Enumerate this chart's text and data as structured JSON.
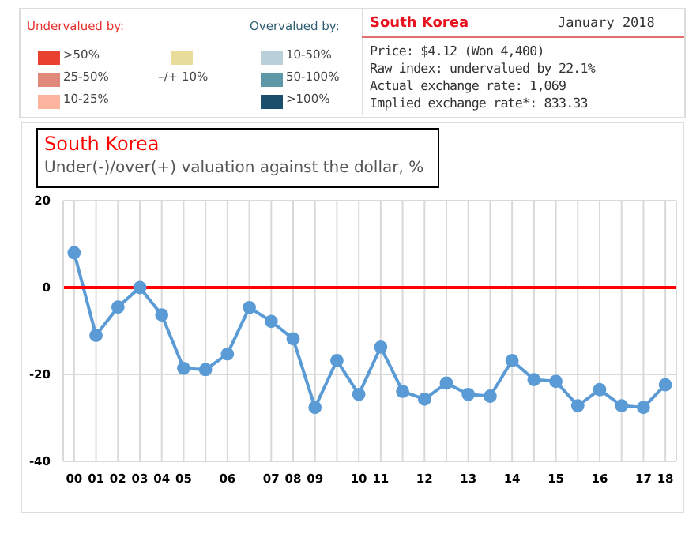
{
  "chart_data": {
    "type": "line",
    "title": "South Korea",
    "subtitle": "Under(-)/over(+) valuation against the dollar, %",
    "categories": [
      "00",
      "01",
      "02",
      "03",
      "04",
      "05",
      null,
      "06",
      null,
      "07",
      "08",
      "09",
      null,
      "10",
      "11",
      null,
      "12",
      null,
      "13",
      null,
      "14",
      null,
      "15",
      null,
      "16",
      null,
      "17",
      "18"
    ],
    "series": [
      {
        "color": "#5b9bd5",
        "values": [
          8,
          -11,
          -4.5,
          0,
          -6.3,
          -18.6,
          -18.9,
          -15.3,
          -4.6,
          -7.8,
          -11.8,
          -27.6,
          -16.8,
          -24.6,
          -13.7,
          -23.9,
          -25.7,
          -22,
          -24.6,
          -25,
          -16.8,
          -21.2,
          -21.6,
          -27.2,
          -23.5,
          -27.2,
          -27.6,
          -22.4
        ]
      }
    ],
    "ylim": [
      -40,
      20
    ],
    "yticks": [
      -40,
      -20,
      0,
      20
    ],
    "grid": true,
    "marker": "circle",
    "line_style": "solid",
    "ref_lines": [
      {
        "axis": "y",
        "value": 0,
        "color": "#ff0000"
      }
    ],
    "annotations": [
      "Undervalued by:",
      ">50%",
      "25-50%",
      "10-25%",
      "–/+ 10%",
      "Overvalued by:",
      "10-50%",
      "50-100%",
      ">100%",
      "South Korea",
      "January 2018",
      "Price: $4.12 (Won 4,400)",
      "Raw index: undervalued by 22.1%",
      "Actual exchange rate: 1,069",
      "Implied exchange rate*: 833.33"
    ]
  }
}
